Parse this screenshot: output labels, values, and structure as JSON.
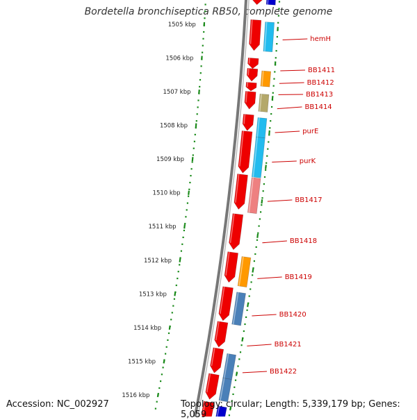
{
  "title": "Bordetella bronchiseptica RB50, complete genome",
  "footer": {
    "accession": "Accession: NC_002927",
    "topology": "Topology: circular; Length: 5,339,179 bp; Genes: 5,059"
  },
  "ticks": [
    "1505 kbp",
    "1506 kbp",
    "1507 kbp",
    "1508 kbp",
    "1509 kbp",
    "1510 kbp",
    "1511 kbp",
    "1512 kbp",
    "1513 kbp",
    "1514 kbp",
    "1515 kbp",
    "1516 kbp"
  ],
  "colors": {
    "forward": "#ee0000",
    "cyan": "#22bbee",
    "orange": "#ff9900",
    "olive": "#b4a86a",
    "pink": "#ee8080",
    "steel": "#4a80b8",
    "blue": "#0000cc",
    "label": "#cc0000",
    "tick": "#1a8a1a"
  },
  "genes": [
    {
      "label": "hemH"
    },
    {
      "label": "BB1411"
    },
    {
      "label": "BB1412"
    },
    {
      "label": "BB1413"
    },
    {
      "label": "BB1414"
    },
    {
      "label": "purE"
    },
    {
      "label": "purK"
    },
    {
      "label": "BB1417"
    },
    {
      "label": "BB1418"
    },
    {
      "label": "BB1419"
    },
    {
      "label": "BB1420"
    },
    {
      "label": "BB1421"
    },
    {
      "label": "BB1422"
    }
  ]
}
